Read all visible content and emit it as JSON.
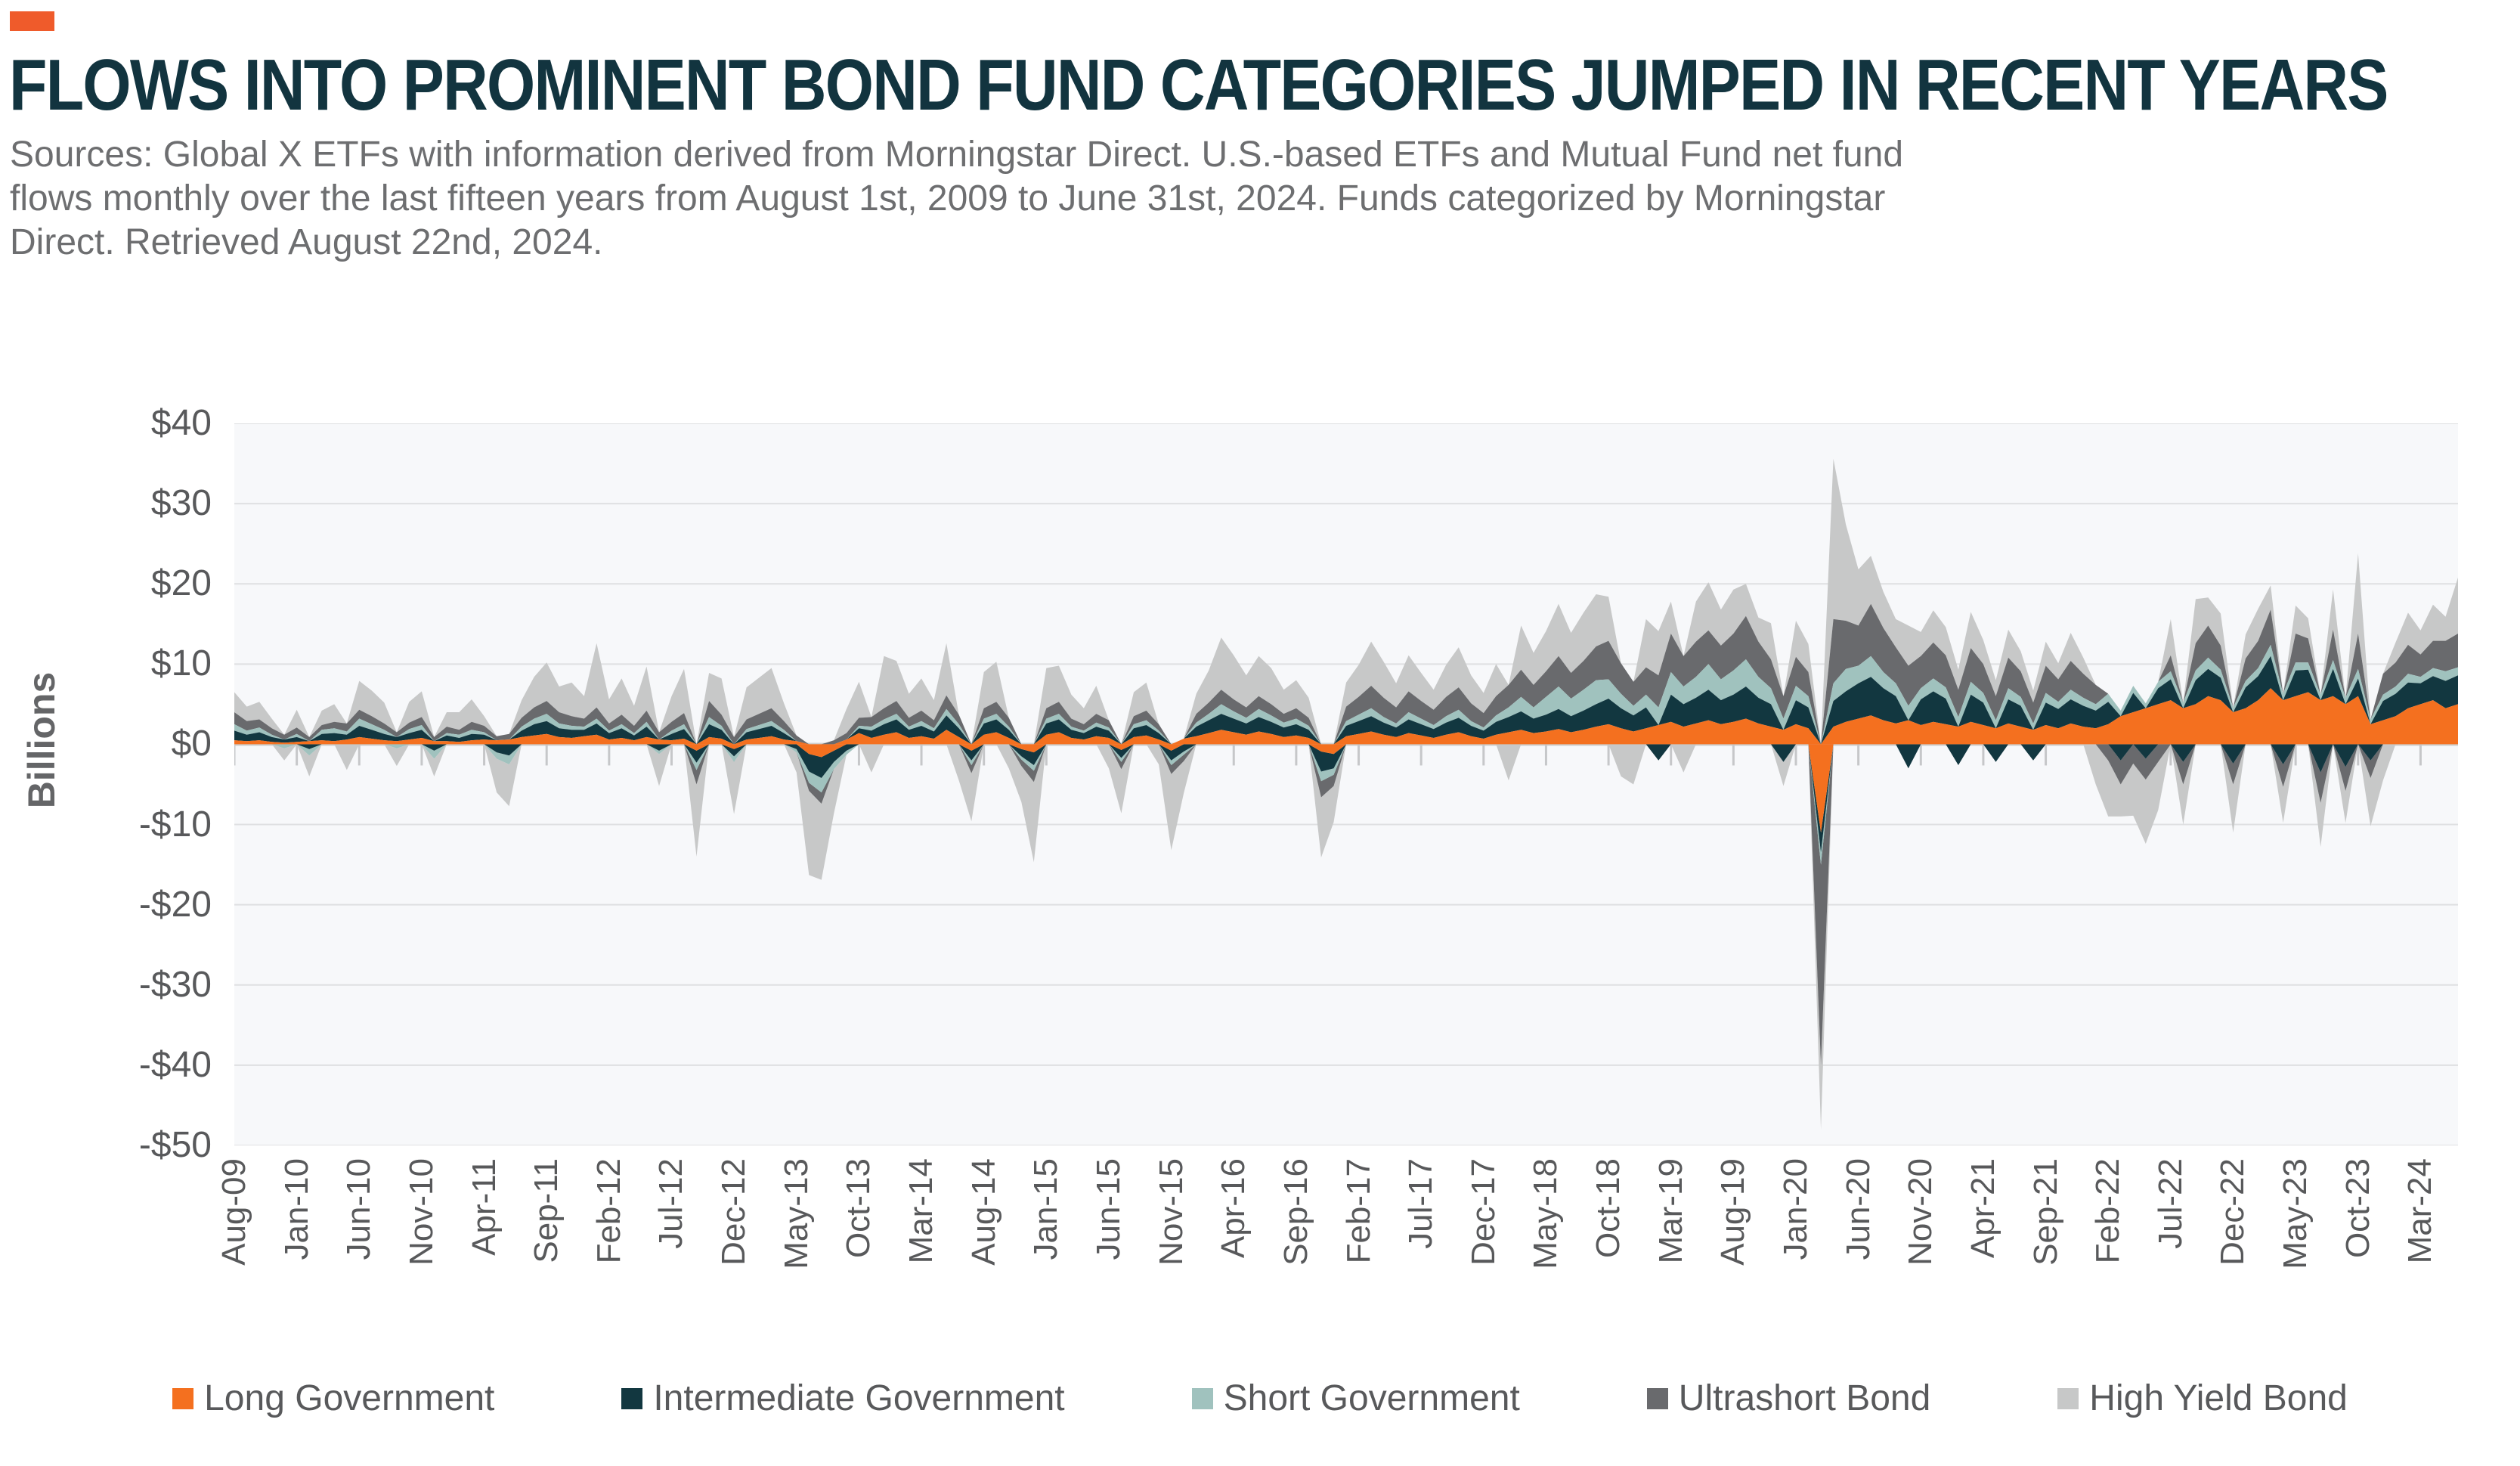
{
  "page": {
    "background": "#ffffff",
    "accent_color": "#EF5B2B"
  },
  "header": {
    "title": "FLOWS INTO PROMINENT BOND FUND CATEGORIES JUMPED IN RECENT YEARS",
    "title_color": "#12343F",
    "source_lines": [
      "Sources: Global X ETFs with information derived from Morningstar Direct. U.S.-based ETFs and Mutual Fund net fund",
      "flows monthly over the last fifteen years from August 1st, 2009 to June 31st, 2024. Funds categorized by Morningstar",
      "Direct. Retrieved August 22nd, 2024."
    ],
    "source_color": "#6D6E70"
  },
  "chart": {
    "ylabel": "Billions",
    "y_ticks": [
      "$40",
      "$30",
      "$20",
      "$10",
      "$0",
      "-$10",
      "-$20",
      "-$30",
      "-$40",
      "-$50"
    ],
    "x_tick_labels": [
      "Aug-09",
      "Jan-10",
      "Jun-10",
      "Nov-10",
      "Apr-11",
      "Sep-11",
      "Feb-12",
      "Jul-12",
      "Dec-12",
      "May-13",
      "Oct-13",
      "Mar-14",
      "Aug-14",
      "Jan-15",
      "Jun-15",
      "Nov-15",
      "Apr-16",
      "Sep-16",
      "Feb-17",
      "Jul-17",
      "Dec-17",
      "May-18",
      "Oct-18",
      "Mar-19",
      "Aug-19",
      "Jan-20",
      "Jun-20",
      "Nov-20",
      "Apr-21",
      "Sep-21",
      "Feb-22",
      "Jul-22",
      "Dec-22",
      "May-23",
      "Oct-23",
      "Mar-24"
    ],
    "x_tick_step": 5,
    "plot_bg": "#F7F8FA",
    "grid_color": "#DFE0E2",
    "zero_line_color": "#CFCFCD",
    "tick_color": "#C6C7C9",
    "label_color": "#58595B"
  },
  "legend": {
    "items": [
      {
        "label": "Long Government",
        "color": "#F4701F"
      },
      {
        "label": "Intermediate Government",
        "color": "#123740"
      },
      {
        "label": "Short Government",
        "color": "#A0C2BE"
      },
      {
        "label": "Ultrashort Bond",
        "color": "#696A6D"
      },
      {
        "label": "High Yield Bond",
        "color": "#C7C8C8"
      }
    ]
  },
  "chart_data": {
    "type": "area",
    "stacked": true,
    "title": "FLOWS INTO PROMINENT BOND FUND CATEGORIES JUMPED IN RECENT YEARS",
    "ylabel": "Billions",
    "ylim": [
      -50,
      40
    ],
    "grid": true,
    "legend_position": "bottom",
    "x_start": "Aug-09",
    "x_end": "Jun-24",
    "x_count": 179,
    "x_unit": "month",
    "series": [
      {
        "name": "Long Government",
        "color": "#F4701F",
        "values": [
          0.5,
          0.4,
          0.5,
          0.3,
          0.2,
          0.3,
          0.4,
          0.5,
          0.4,
          0.6,
          0.9,
          0.7,
          0.5,
          0.4,
          0.6,
          0.8,
          0.4,
          0.4,
          0.3,
          0.5,
          0.6,
          0.5,
          0.6,
          0.9,
          1.1,
          1.3,
          0.9,
          0.8,
          1.0,
          1.2,
          0.6,
          0.8,
          0.5,
          0.9,
          0.6,
          0.5,
          0.7,
          -0.8,
          0.9,
          0.7,
          -0.6,
          0.6,
          0.8,
          1.0,
          0.6,
          0.4,
          -1.2,
          -1.6,
          -0.8,
          0.6,
          1.4,
          0.8,
          1.2,
          1.5,
          0.8,
          1.0,
          0.7,
          1.8,
          0.9,
          -0.8,
          1.2,
          1.5,
          0.8,
          -0.6,
          -1.0,
          1.2,
          1.5,
          0.8,
          0.6,
          1.0,
          0.8,
          -0.7,
          0.9,
          1.1,
          0.6,
          -0.8,
          0.7,
          1.0,
          1.4,
          1.8,
          1.5,
          1.2,
          1.6,
          1.3,
          0.9,
          1.1,
          0.8,
          -0.9,
          -1.2,
          1.0,
          1.3,
          1.6,
          1.2,
          0.9,
          1.4,
          1.1,
          0.8,
          1.2,
          1.5,
          1.0,
          0.7,
          1.2,
          1.5,
          1.8,
          1.4,
          1.6,
          1.9,
          1.5,
          1.8,
          2.2,
          2.5,
          2.0,
          1.6,
          2.0,
          2.4,
          2.8,
          2.2,
          2.6,
          3.0,
          2.5,
          2.8,
          3.2,
          2.6,
          2.2,
          1.8,
          2.5,
          2.0,
          -11.0,
          2.2,
          2.8,
          3.2,
          3.6,
          3.0,
          2.6,
          3.0,
          2.4,
          2.8,
          2.5,
          2.2,
          2.8,
          2.4,
          2.0,
          2.6,
          2.2,
          1.8,
          2.4,
          2.0,
          2.6,
          2.2,
          2.0,
          2.5,
          3.5,
          4.0,
          4.5,
          5.0,
          5.5,
          4.5,
          5.0,
          6.0,
          5.5,
          4.0,
          4.5,
          5.5,
          7.0,
          5.5,
          6.0,
          6.5,
          5.5,
          6.0,
          5.0,
          6.0,
          2.5,
          3.0,
          3.5,
          4.5,
          5.0,
          5.5,
          4.5,
          5.0
        ]
      },
      {
        "name": "Intermediate Government",
        "color": "#123740",
        "values": [
          1.2,
          0.8,
          1.0,
          0.6,
          0.4,
          0.6,
          -0.6,
          0.8,
          1.0,
          0.6,
          1.4,
          1.1,
          0.8,
          0.5,
          0.8,
          1.0,
          -0.8,
          0.7,
          0.5,
          0.8,
          0.6,
          -1.0,
          -1.4,
          0.8,
          1.4,
          1.6,
          1.1,
          1.0,
          0.8,
          1.4,
          0.8,
          1.2,
          0.6,
          1.3,
          -0.8,
          0.8,
          1.2,
          -1.5,
          1.6,
          1.1,
          -0.9,
          0.9,
          1.1,
          1.3,
          0.8,
          -0.6,
          -2.2,
          -2.6,
          -1.4,
          -0.8,
          0.6,
          0.9,
          1.3,
          1.6,
          1.0,
          1.3,
          0.9,
          1.8,
          1.1,
          -1.2,
          1.4,
          1.6,
          1.0,
          -0.9,
          -1.6,
          1.4,
          1.6,
          1.0,
          0.8,
          1.2,
          0.9,
          -1.0,
          1.1,
          1.3,
          0.8,
          -1.2,
          -0.9,
          1.2,
          1.6,
          2.0,
          1.7,
          1.4,
          1.8,
          1.5,
          1.2,
          1.4,
          1.0,
          -2.5,
          -1.8,
          1.3,
          1.6,
          1.9,
          1.5,
          1.2,
          1.7,
          1.4,
          1.1,
          1.5,
          1.8,
          1.3,
          1.0,
          1.6,
          1.9,
          2.3,
          1.8,
          2.1,
          2.5,
          2.0,
          2.4,
          2.8,
          3.2,
          2.5,
          2.0,
          2.6,
          -2.0,
          3.4,
          2.8,
          3.2,
          3.8,
          3.0,
          3.4,
          4.0,
          3.2,
          2.8,
          -2.2,
          3.0,
          2.6,
          -2.5,
          3.2,
          3.8,
          4.4,
          4.8,
          4.0,
          3.4,
          -3.0,
          3.2,
          3.8,
          3.2,
          -2.6,
          3.4,
          2.8,
          -2.2,
          3.0,
          2.6,
          -2.0,
          2.8,
          2.4,
          3.0,
          2.6,
          2.2,
          2.8,
          -2.0,
          2.4,
          -1.8,
          2.0,
          2.6,
          -2.2,
          3.0,
          3.4,
          2.8,
          -2.4,
          2.6,
          3.0,
          4.0,
          -2.5,
          3.2,
          2.8,
          -3.5,
          3.4,
          -2.8,
          2.2,
          -2.0,
          2.4,
          2.8,
          3.2,
          2.6,
          3.0,
          3.4,
          3.6
        ]
      },
      {
        "name": "Short Government",
        "color": "#A0C2BE",
        "values": [
          0.8,
          0.5,
          0.6,
          0.3,
          -0.5,
          0.4,
          -0.8,
          0.5,
          0.6,
          0.4,
          0.9,
          0.7,
          0.5,
          -0.5,
          0.5,
          0.6,
          -1.0,
          0.3,
          0.4,
          0.5,
          0.3,
          -0.8,
          -1.1,
          0.5,
          0.7,
          0.9,
          0.6,
          0.5,
          0.4,
          0.6,
          0.3,
          0.5,
          0.3,
          0.6,
          -0.4,
          0.4,
          0.6,
          -0.9,
          0.9,
          0.5,
          -0.7,
          0.4,
          0.5,
          0.6,
          0.4,
          -0.4,
          -1.4,
          -1.8,
          -0.9,
          -0.5,
          0.3,
          0.5,
          0.6,
          0.7,
          0.4,
          0.6,
          0.4,
          0.8,
          0.5,
          -0.6,
          0.6,
          0.7,
          0.4,
          -0.4,
          -0.7,
          0.6,
          0.7,
          0.4,
          0.3,
          0.5,
          0.4,
          -0.5,
          0.5,
          0.6,
          0.3,
          -0.6,
          -0.4,
          0.5,
          0.8,
          1.2,
          0.9,
          0.7,
          1.0,
          0.8,
          0.6,
          0.7,
          0.5,
          -1.2,
          -0.8,
          0.6,
          0.8,
          1.0,
          0.7,
          0.5,
          0.9,
          0.7,
          0.5,
          0.8,
          1.0,
          0.6,
          0.4,
          0.8,
          1.2,
          1.8,
          1.4,
          2.2,
          2.8,
          2.2,
          2.6,
          3.0,
          2.4,
          1.8,
          1.2,
          1.6,
          2.2,
          2.8,
          2.2,
          2.6,
          3.2,
          2.6,
          3.0,
          3.4,
          2.6,
          2.0,
          1.4,
          1.8,
          1.4,
          -1.5,
          2.2,
          2.8,
          2.2,
          2.6,
          2.0,
          1.6,
          1.8,
          1.4,
          1.6,
          1.4,
          1.2,
          1.6,
          1.2,
          1.0,
          1.4,
          1.1,
          0.8,
          1.2,
          0.9,
          1.2,
          1.0,
          0.8,
          1.0,
          0.7,
          0.9,
          0.6,
          0.8,
          1.0,
          0.7,
          1.2,
          1.4,
          1.0,
          0.6,
          0.8,
          1.0,
          1.4,
          0.8,
          1.0,
          0.9,
          0.7,
          1.1,
          0.8,
          1.2,
          0.6,
          0.8,
          0.9,
          1.1,
          0.8,
          1.0,
          1.2,
          1.0
        ]
      },
      {
        "name": "Ultrashort Bond",
        "color": "#696A6D",
        "values": [
          1.5,
          1.2,
          1.0,
          0.8,
          0.6,
          0.8,
          0.5,
          0.6,
          0.8,
          1.0,
          1.1,
          1.0,
          0.8,
          0.6,
          0.8,
          1.0,
          0.5,
          0.8,
          0.6,
          1.0,
          0.8,
          0.5,
          0.7,
          1.1,
          1.4,
          1.6,
          1.4,
          1.2,
          1.0,
          1.4,
          0.9,
          1.2,
          0.9,
          1.4,
          0.9,
          1.1,
          1.4,
          -1.8,
          2.0,
          1.4,
          0.9,
          1.2,
          1.4,
          1.6,
          1.1,
          0.7,
          -1.0,
          -1.4,
          0.5,
          0.8,
          1.0,
          1.2,
          1.4,
          1.6,
          1.1,
          1.3,
          1.0,
          1.7,
          1.2,
          -1.0,
          1.3,
          1.5,
          1.1,
          -0.8,
          -1.4,
          1.3,
          1.5,
          1.0,
          0.8,
          1.1,
          0.9,
          -0.9,
          1.0,
          1.2,
          0.8,
          -1.1,
          -0.8,
          1.1,
          1.4,
          1.8,
          1.5,
          1.3,
          1.6,
          1.4,
          1.1,
          1.3,
          1.0,
          -2.0,
          -1.4,
          1.8,
          2.2,
          2.8,
          2.4,
          2.0,
          2.6,
          2.2,
          1.9,
          2.4,
          2.8,
          2.2,
          1.8,
          2.4,
          2.8,
          3.4,
          2.8,
          3.2,
          3.8,
          3.2,
          3.6,
          4.2,
          4.8,
          3.8,
          3.0,
          3.4,
          4.0,
          4.8,
          3.8,
          4.4,
          4.2,
          4.2,
          4.6,
          5.4,
          4.4,
          3.6,
          2.8,
          3.6,
          3.0,
          -25.0,
          8.0,
          6.0,
          5.0,
          6.5,
          5.5,
          4.5,
          5.0,
          4.0,
          4.5,
          4.0,
          3.4,
          4.2,
          3.6,
          3.0,
          3.8,
          3.2,
          2.6,
          3.4,
          2.8,
          3.6,
          3.0,
          2.4,
          -2.0,
          -3.0,
          -2.4,
          -2.6,
          -2.2,
          2.0,
          -2.8,
          3.4,
          4.0,
          3.0,
          -2.6,
          2.8,
          3.4,
          4.4,
          -2.8,
          3.6,
          3.0,
          -3.8,
          3.8,
          -3.0,
          4.4,
          -2.2,
          2.6,
          3.0,
          3.6,
          2.8,
          3.4,
          3.8,
          4.2
        ]
      },
      {
        "name": "High Yield Bond",
        "color": "#C7C8C8",
        "values": [
          2.5,
          1.8,
          2.2,
          1.2,
          -1.5,
          2.2,
          -2.6,
          1.8,
          2.2,
          -3.2,
          3.6,
          3.2,
          2.6,
          -2.2,
          2.6,
          3.2,
          -2.2,
          1.8,
          2.2,
          2.8,
          1.2,
          -4.2,
          -5.2,
          2.2,
          3.8,
          4.8,
          3.2,
          4.2,
          2.8,
          8.0,
          3.0,
          4.5,
          2.5,
          5.5,
          -4.0,
          3.2,
          5.5,
          -9.0,
          3.5,
          4.5,
          -6.5,
          4.0,
          4.5,
          5.0,
          2.2,
          -2.5,
          -10.5,
          -9.5,
          -5.5,
          3.0,
          4.5,
          -3.5,
          6.5,
          5.0,
          3.0,
          4.0,
          2.5,
          6.5,
          -4.5,
          -6.0,
          4.5,
          5.0,
          -3.0,
          -4.5,
          -10.0,
          5.0,
          4.5,
          3.0,
          2.0,
          3.5,
          -3.0,
          -5.5,
          3.0,
          3.5,
          -2.5,
          -9.5,
          -4.0,
          2.5,
          4.0,
          6.5,
          5.5,
          4.0,
          5.0,
          4.5,
          3.0,
          3.5,
          2.5,
          -7.5,
          -4.5,
          3.0,
          4.0,
          5.5,
          4.5,
          3.0,
          4.5,
          3.5,
          2.5,
          4.0,
          5.0,
          3.5,
          2.5,
          4.0,
          -4.5,
          5.5,
          4.0,
          5.0,
          6.5,
          5.0,
          6.0,
          6.5,
          5.5,
          -4.0,
          -5.0,
          6.0,
          5.5,
          4.0,
          -3.5,
          5.0,
          6.0,
          4.5,
          5.5,
          4.0,
          3.0,
          4.5,
          -3.0,
          4.5,
          3.5,
          -8.0,
          20.0,
          12.0,
          7.0,
          6.0,
          4.5,
          3.5,
          5.0,
          3.0,
          4.0,
          3.5,
          2.5,
          4.5,
          3.0,
          2.0,
          3.5,
          2.5,
          1.5,
          3.0,
          2.0,
          3.5,
          2.0,
          -5.0,
          -7.0,
          -4.0,
          -6.5,
          -8.0,
          -6.0,
          4.5,
          -5.0,
          5.5,
          3.5,
          4.0,
          -6.0,
          3.0,
          4.0,
          3.0,
          -4.5,
          3.5,
          2.5,
          -5.5,
          5.0,
          -4.0,
          10.0,
          -6.0,
          -4.5,
          2.5,
          4.0,
          3.0,
          4.5,
          3.0,
          7.0
        ]
      }
    ]
  }
}
